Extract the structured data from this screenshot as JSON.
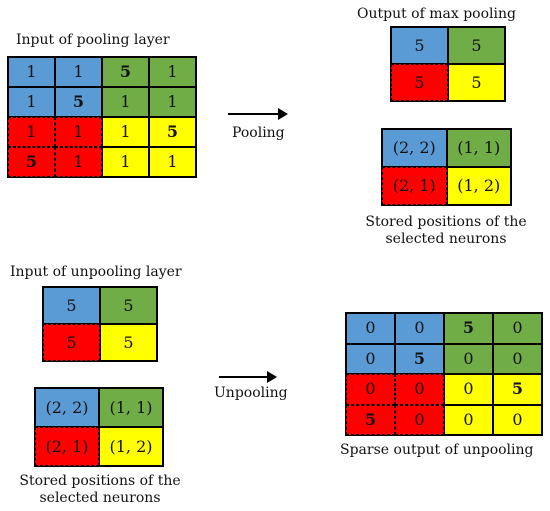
{
  "labels": {
    "input_pooling": "Input of pooling layer",
    "output_max_pooling": "Output of max pooling",
    "pooling": "Pooling",
    "stored_top_1": "Stored positions of the",
    "stored_top_2": "selected neurons",
    "input_unpooling": "Input of unpooling layer",
    "unpooling": "Unpooling",
    "stored_bottom_1": "Stored positions of the",
    "stored_bottom_2": "selected neurons",
    "sparse_output": "Sparse output of unpooling"
  },
  "colors": {
    "blue": "#5b9bd5",
    "green": "#70ad47",
    "red": "#ff0000",
    "yellow": "#ffff00"
  },
  "input_pool": [
    [
      "1",
      "1",
      "5",
      "1"
    ],
    [
      "1",
      "5",
      "1",
      "1"
    ],
    [
      "1",
      "1",
      "1",
      "5"
    ],
    [
      "5",
      "1",
      "1",
      "1"
    ]
  ],
  "max_pool_output": [
    [
      "5",
      "5"
    ],
    [
      "5",
      "5"
    ]
  ],
  "positions_top": [
    [
      "(2, 2)",
      "(1, 1)"
    ],
    [
      "(2, 1)",
      "(1, 2)"
    ]
  ],
  "input_unpool": [
    [
      "5",
      "5"
    ],
    [
      "5",
      "5"
    ]
  ],
  "positions_bottom": [
    [
      "(2, 2)",
      "(1, 1)"
    ],
    [
      "(2, 1)",
      "(1, 2)"
    ]
  ],
  "unpool_output": [
    [
      "0",
      "0",
      "5",
      "0"
    ],
    [
      "0",
      "5",
      "0",
      "0"
    ],
    [
      "0",
      "0",
      "0",
      "5"
    ],
    [
      "5",
      "0",
      "0",
      "0"
    ]
  ]
}
